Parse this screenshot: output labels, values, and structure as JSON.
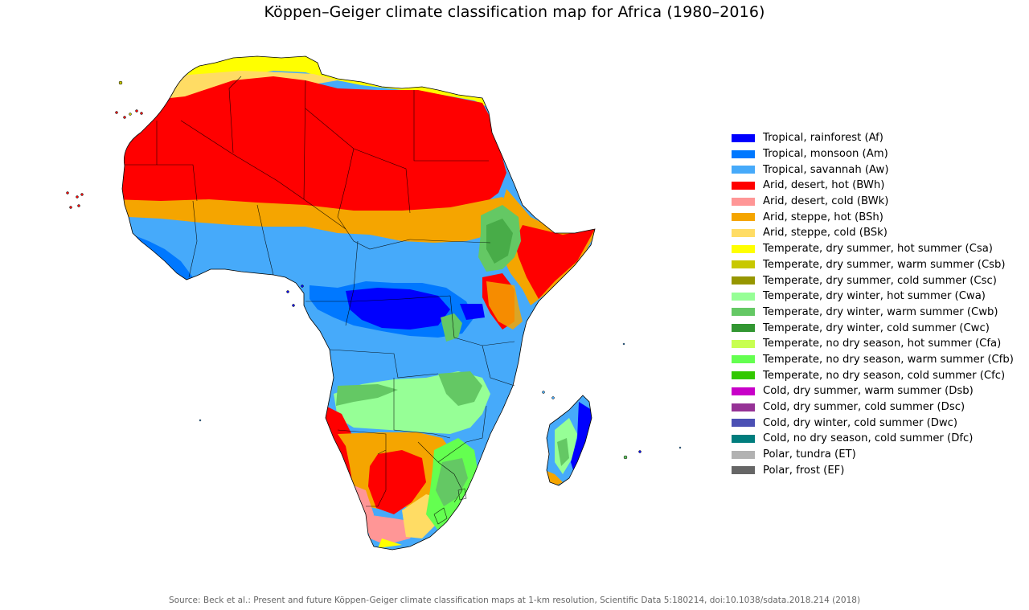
{
  "title": "Köppen–Geiger climate classification map for Africa (1980–2016)",
  "source": "Source: Beck et al.: Present and future Köppen-Geiger climate classification maps at 1-km resolution, Scientific Data 5:180214, doi:10.1038/sdata.2018.214 (2018)",
  "legend": [
    {
      "label": "Tropical, rainforest (Af)",
      "color": "#0000fe"
    },
    {
      "label": "Tropical, monsoon (Am)",
      "color": "#0078ff"
    },
    {
      "label": "Tropical, savannah (Aw)",
      "color": "#46aafa"
    },
    {
      "label": "Arid, desert, hot (BWh)",
      "color": "#ff0000"
    },
    {
      "label": "Arid, desert, cold (BWk)",
      "color": "#ff9696"
    },
    {
      "label": "Arid, steppe, hot (BSh)",
      "color": "#f5a500"
    },
    {
      "label": "Arid, steppe, cold (BSk)",
      "color": "#ffdc64"
    },
    {
      "label": "Temperate, dry summer, hot summer (Csa)",
      "color": "#ffff00"
    },
    {
      "label": "Temperate, dry summer, warm summer (Csb)",
      "color": "#c8c800"
    },
    {
      "label": "Temperate, dry summer, cold summer (Csc)",
      "color": "#969600"
    },
    {
      "label": "Temperate, dry winter, hot summer (Cwa)",
      "color": "#96ff96"
    },
    {
      "label": "Temperate, dry winter, warm summer (Cwb)",
      "color": "#64c864"
    },
    {
      "label": "Temperate, dry winter, cold summer (Cwc)",
      "color": "#329632"
    },
    {
      "label": "Temperate, no dry season, hot summer (Cfa)",
      "color": "#c8ff50"
    },
    {
      "label": "Temperate, no dry season, warm summer (Cfb)",
      "color": "#64ff50"
    },
    {
      "label": "Temperate, no dry season, cold summer (Cfc)",
      "color": "#32c800"
    },
    {
      "label": "Cold, dry summer, warm summer (Dsb)",
      "color": "#c800c8"
    },
    {
      "label": "Cold, dry summer, cold summer (Dsc)",
      "color": "#963296"
    },
    {
      "label": "Cold, dry winter, cold summer (Dwc)",
      "color": "#4b50b4"
    },
    {
      "label": "Cold, no dry season, cold summer (Dfc)",
      "color": "#007d7d"
    },
    {
      "label": "Polar, tundra (ET)",
      "color": "#b2b2b2"
    },
    {
      "label": "Polar, frost (EF)",
      "color": "#666666"
    }
  ]
}
